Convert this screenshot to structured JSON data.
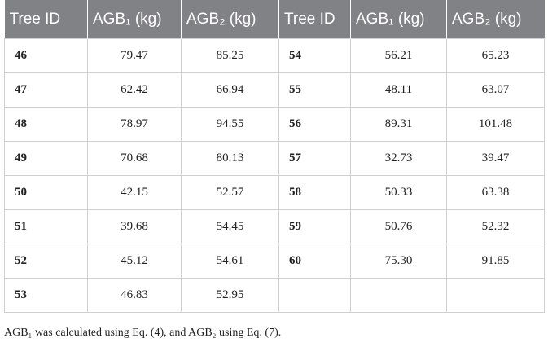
{
  "table": {
    "header": [
      "Tree ID",
      "AGB₁ (kg)",
      "AGB₂ (kg)",
      "Tree ID",
      "AGB₁ (kg)",
      "AGB₂ (kg)"
    ],
    "rows": [
      [
        "46",
        "79.47",
        "85.25",
        "54",
        "56.21",
        "65.23"
      ],
      [
        "47",
        "62.42",
        "66.94",
        "55",
        "48.11",
        "63.07"
      ],
      [
        "48",
        "78.97",
        "94.55",
        "56",
        "89.31",
        "101.48"
      ],
      [
        "49",
        "70.68",
        "80.13",
        "57",
        "32.73",
        "39.47"
      ],
      [
        "50",
        "42.15",
        "52.57",
        "58",
        "50.33",
        "63.38"
      ],
      [
        "51",
        "39.68",
        "54.45",
        "59",
        "50.76",
        "52.32"
      ],
      [
        "52",
        "45.12",
        "54.61",
        "60",
        "75.30",
        "91.85"
      ],
      [
        "53",
        "46.83",
        "52.95",
        null,
        null,
        null
      ]
    ]
  },
  "footnote": "AGB₁ was calculated using Eq. (4), and AGB₂ using Eq. (7)."
}
